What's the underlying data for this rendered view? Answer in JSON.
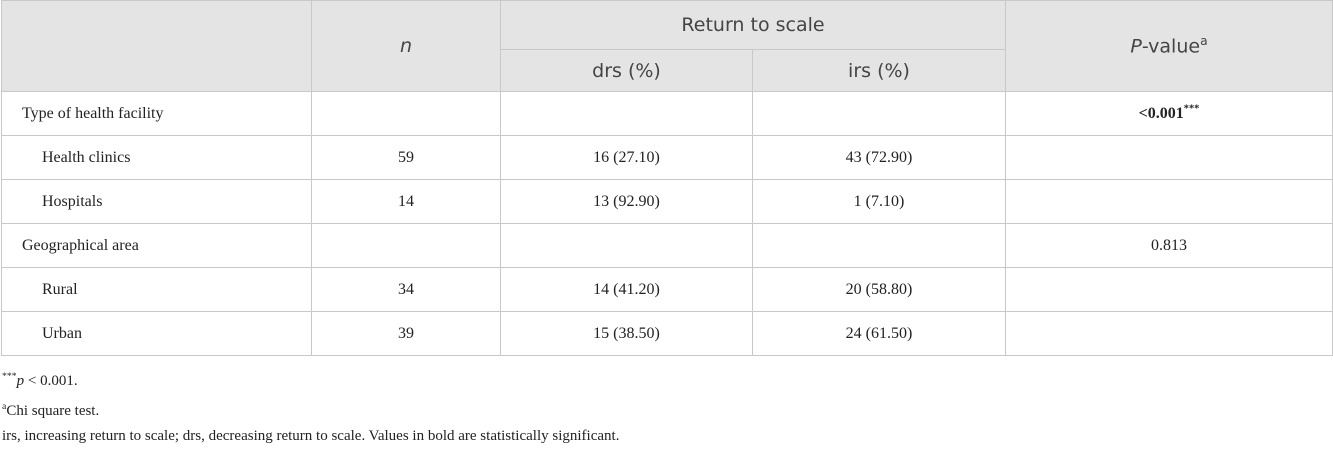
{
  "table": {
    "header": {
      "n": "n",
      "group": "Return to scale",
      "p_value": {
        "italic": "P",
        "text": "-value",
        "sup": "a"
      },
      "sub": [
        "drs (%)",
        "irs (%)"
      ]
    },
    "groups": [
      {
        "label": "Type of health facility",
        "p_value": {
          "text": "<0.001",
          "sup": "***",
          "bold": true
        },
        "rows": [
          {
            "label": "Health clinics",
            "n": "59",
            "drs": "16 (27.10)",
            "irs": "43 (72.90)"
          },
          {
            "label": "Hospitals",
            "n": "14",
            "drs": "13 (92.90)",
            "irs": "1 (7.10)"
          }
        ]
      },
      {
        "label": "Geographical area",
        "p_value": {
          "text": "0.813",
          "bold": false
        },
        "rows": [
          {
            "label": "Rural",
            "n": "34",
            "drs": "14 (41.20)",
            "irs": "20 (58.80)"
          },
          {
            "label": "Urban",
            "n": "39",
            "drs": "15 (38.50)",
            "irs": "24 (61.50)"
          }
        ]
      }
    ]
  },
  "footnotes": [
    {
      "sup": "***",
      "italic": "p",
      "text": " < 0.001."
    },
    {
      "sup": "a",
      "text": "Chi square test."
    },
    {
      "text": "irs, increasing return to scale; drs, decreasing return to scale. Values in bold are statistically significant."
    }
  ]
}
